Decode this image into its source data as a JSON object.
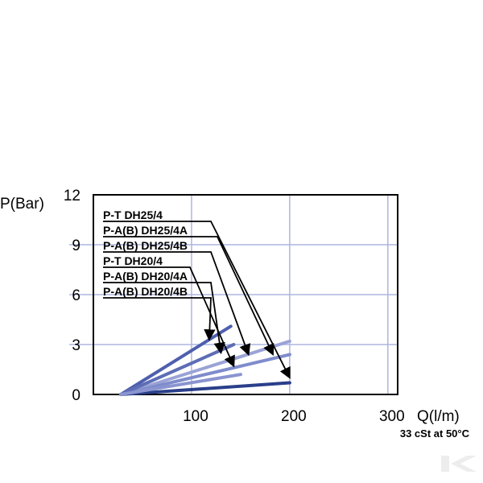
{
  "chart_data": {
    "type": "line",
    "ylabel": "P(Bar)",
    "xlabel": "Q(l/m)",
    "note": "33 cSt at 50°C",
    "xlim": [
      0,
      310
    ],
    "ylim": [
      0,
      12
    ],
    "x_ticks": [
      "100",
      "200",
      "300"
    ],
    "y_ticks": [
      "0",
      "3",
      "6",
      "9",
      "12"
    ],
    "grid": true,
    "legend_placement": "top-left",
    "series": [
      {
        "name": "P-T DH25/4",
        "color": "#9aa3d6",
        "x": [
          28,
          200
        ],
        "y": [
          0,
          3.2
        ]
      },
      {
        "name": "P-A(B) DH25/4A",
        "color": "#7f8ccc",
        "x": [
          28,
          200
        ],
        "y": [
          0,
          2.4
        ]
      },
      {
        "name": "P-A(B) DH25/4B",
        "color": "#2a3f8a",
        "x": [
          28,
          200
        ],
        "y": [
          0,
          0.7
        ]
      },
      {
        "name": "P-T DH20/4",
        "color": "#4e5fae",
        "x": [
          28,
          140
        ],
        "y": [
          0,
          4.1
        ]
      },
      {
        "name": "P-A(B) DH20/4A",
        "color": "#5d6db5",
        "x": [
          28,
          143
        ],
        "y": [
          0,
          3.0
        ]
      },
      {
        "name": "P-A(B) DH20/4B",
        "color": "#8a94d0",
        "x": [
          28,
          150
        ],
        "y": [
          0,
          1.2
        ]
      }
    ],
    "arrow_targets": [
      {
        "x": 200,
        "y": 1.0
      },
      {
        "x": 183,
        "y": 2.4
      },
      {
        "x": 158,
        "y": 2.4
      },
      {
        "x": 143,
        "y": 1.7
      },
      {
        "x": 130,
        "y": 2.5
      },
      {
        "x": 118,
        "y": 3.3
      }
    ]
  }
}
